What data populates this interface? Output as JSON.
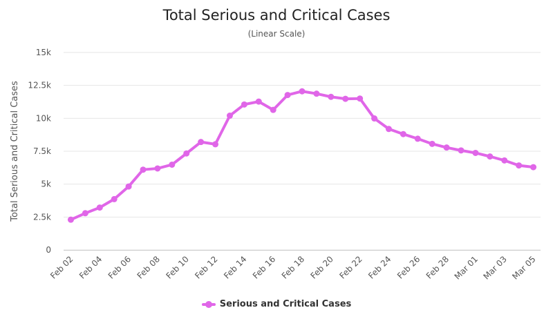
{
  "chart_data": {
    "type": "line",
    "title": "Total Serious and Critical Cases",
    "subtitle": "(Linear Scale)",
    "ylabel": "Total Serious and Critical Cases",
    "xlabel": "",
    "ylim": [
      0,
      15000
    ],
    "y_ticks": [
      {
        "value": 0,
        "label": "0"
      },
      {
        "value": 2500,
        "label": "2.5k"
      },
      {
        "value": 5000,
        "label": "5k"
      },
      {
        "value": 7500,
        "label": "7.5k"
      },
      {
        "value": 10000,
        "label": "10k"
      },
      {
        "value": 12500,
        "label": "12.5k"
      },
      {
        "value": 15000,
        "label": "15k"
      }
    ],
    "x": [
      "Feb 02",
      "Feb 03",
      "Feb 04",
      "Feb 05",
      "Feb 06",
      "Feb 07",
      "Feb 08",
      "Feb 09",
      "Feb 10",
      "Feb 11",
      "Feb 12",
      "Feb 13",
      "Feb 14",
      "Feb 15",
      "Feb 16",
      "Feb 17",
      "Feb 18",
      "Feb 19",
      "Feb 20",
      "Feb 21",
      "Feb 22",
      "Feb 23",
      "Feb 24",
      "Feb 25",
      "Feb 26",
      "Feb 27",
      "Feb 28",
      "Feb 29",
      "Mar 01",
      "Mar 02",
      "Mar 03",
      "Mar 04",
      "Mar 05"
    ],
    "x_tick_labels": [
      "Feb 02",
      "Feb 04",
      "Feb 06",
      "Feb 08",
      "Feb 10",
      "Feb 12",
      "Feb 14",
      "Feb 16",
      "Feb 18",
      "Feb 20",
      "Feb 22",
      "Feb 24",
      "Feb 26",
      "Feb 28",
      "Mar 01",
      "Mar 03",
      "Mar 05"
    ],
    "series": [
      {
        "name": "Serious and Critical Cases",
        "color": "#e066e8",
        "values": [
          2300,
          2790,
          3220,
          3860,
          4820,
          6100,
          6190,
          6480,
          7330,
          8200,
          8030,
          10200,
          11050,
          11270,
          10640,
          11770,
          12050,
          11870,
          11630,
          11480,
          11500,
          9990,
          9190,
          8800,
          8450,
          8060,
          7780,
          7560,
          7370,
          7100,
          6800,
          6420,
          6290
        ]
      }
    ],
    "grid": true,
    "legend": "bottom-center"
  }
}
